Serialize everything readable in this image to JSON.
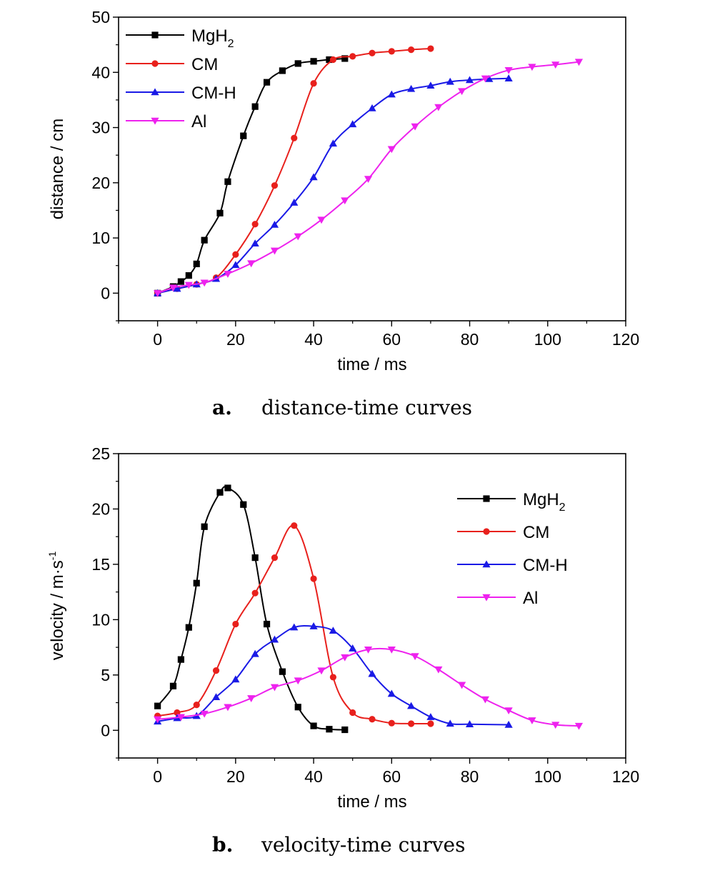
{
  "chart_data": [
    {
      "type": "line",
      "caption_letter": "a.",
      "caption_text": "distance-time curves",
      "xlabel": "time / ms",
      "ylabel": "distance / cm",
      "xlim": [
        -10,
        120
      ],
      "ylim": [
        -5,
        50
      ],
      "xticks": [
        0,
        20,
        40,
        60,
        80,
        100,
        120
      ],
      "yticks": [
        0,
        10,
        20,
        30,
        40,
        50
      ],
      "legend_position": "top-left",
      "series": [
        {
          "name": "MgH",
          "name_sub": "2",
          "color": "#000000",
          "marker": "square",
          "x": [
            0,
            4,
            6,
            8,
            10,
            12,
            16,
            18,
            22,
            25,
            28,
            32,
            36,
            40,
            44,
            48
          ],
          "y": [
            0,
            1.2,
            2.1,
            3.2,
            5.3,
            9.6,
            14.5,
            20.2,
            28.5,
            33.8,
            38.2,
            40.3,
            41.6,
            42.0,
            42.3,
            42.5
          ]
        },
        {
          "name": "CM",
          "color": "#e8201c",
          "marker": "circle",
          "x": [
            0,
            5,
            10,
            15,
            20,
            25,
            30,
            35,
            40,
            45,
            50,
            55,
            60,
            65,
            70
          ],
          "y": [
            0,
            0.8,
            1.6,
            2.8,
            7.0,
            12.5,
            19.5,
            28.1,
            38.0,
            42.3,
            42.9,
            43.5,
            43.8,
            44.1,
            44.3
          ]
        },
        {
          "name": "CM-H",
          "color": "#1a1ae6",
          "marker": "triangle-up",
          "x": [
            0,
            5,
            10,
            15,
            20,
            25,
            30,
            35,
            40,
            45,
            50,
            55,
            60,
            65,
            70,
            75,
            80,
            85,
            90
          ],
          "y": [
            0,
            0.8,
            1.6,
            2.6,
            5.1,
            9.0,
            12.4,
            16.4,
            21.0,
            27.1,
            30.6,
            33.5,
            36.0,
            37.0,
            37.6,
            38.3,
            38.6,
            38.8,
            38.9
          ]
        },
        {
          "name": "Al",
          "color": "#ee22ee",
          "marker": "triangle-down",
          "x": [
            0,
            4,
            8,
            12,
            18,
            24,
            30,
            36,
            42,
            48,
            54,
            60,
            66,
            72,
            78,
            84,
            90,
            96,
            102,
            108
          ],
          "y": [
            0,
            1.0,
            1.5,
            1.9,
            3.5,
            5.4,
            7.7,
            10.3,
            13.3,
            16.8,
            20.7,
            26.1,
            30.2,
            33.7,
            36.6,
            38.9,
            40.4,
            41.0,
            41.4,
            41.9
          ]
        }
      ]
    },
    {
      "type": "line",
      "caption_letter": "b.",
      "caption_text": "velocity-time curves",
      "xlabel": "time / ms",
      "ylabel": "velocity / m·s",
      "ylabel_sup": "-1",
      "xlim": [
        -10,
        120
      ],
      "ylim": [
        -2.5,
        25
      ],
      "xticks": [
        0,
        20,
        40,
        60,
        80,
        100,
        120
      ],
      "yticks": [
        0,
        5,
        10,
        15,
        20,
        25
      ],
      "legend_position": "top-right",
      "series": [
        {
          "name": "MgH",
          "name_sub": "2",
          "color": "#000000",
          "marker": "square",
          "x": [
            0,
            4,
            6,
            8,
            10,
            12,
            16,
            18,
            22,
            25,
            28,
            32,
            36,
            40,
            44,
            48
          ],
          "y": [
            2.2,
            4.0,
            6.4,
            9.3,
            13.3,
            18.4,
            21.5,
            21.9,
            20.4,
            15.6,
            9.6,
            5.3,
            2.1,
            0.4,
            0.1,
            0.05
          ]
        },
        {
          "name": "CM",
          "color": "#e8201c",
          "marker": "circle",
          "x": [
            0,
            5,
            10,
            15,
            20,
            25,
            30,
            35,
            40,
            45,
            50,
            55,
            60,
            65,
            70
          ],
          "y": [
            1.3,
            1.6,
            2.3,
            5.4,
            9.6,
            12.4,
            15.6,
            18.5,
            13.7,
            4.8,
            1.6,
            1.0,
            0.65,
            0.6,
            0.6
          ]
        },
        {
          "name": "CM-H",
          "color": "#1a1ae6",
          "marker": "triangle-up",
          "x": [
            0,
            5,
            10,
            15,
            20,
            25,
            30,
            35,
            40,
            45,
            50,
            55,
            60,
            65,
            70,
            75,
            80,
            90
          ],
          "y": [
            0.8,
            1.1,
            1.3,
            3.0,
            4.6,
            6.9,
            8.2,
            9.3,
            9.4,
            9.0,
            7.4,
            5.1,
            3.3,
            2.2,
            1.2,
            0.6,
            0.55,
            0.5
          ]
        },
        {
          "name": "Al",
          "color": "#ee22ee",
          "marker": "triangle-down",
          "x": [
            0,
            6,
            12,
            18,
            24,
            30,
            36,
            42,
            48,
            54,
            60,
            66,
            72,
            78,
            84,
            90,
            96,
            102,
            108
          ],
          "y": [
            1.0,
            1.2,
            1.5,
            2.1,
            2.9,
            3.9,
            4.5,
            5.4,
            6.6,
            7.3,
            7.3,
            6.7,
            5.5,
            4.1,
            2.8,
            1.8,
            0.9,
            0.5,
            0.4
          ]
        }
      ]
    }
  ]
}
